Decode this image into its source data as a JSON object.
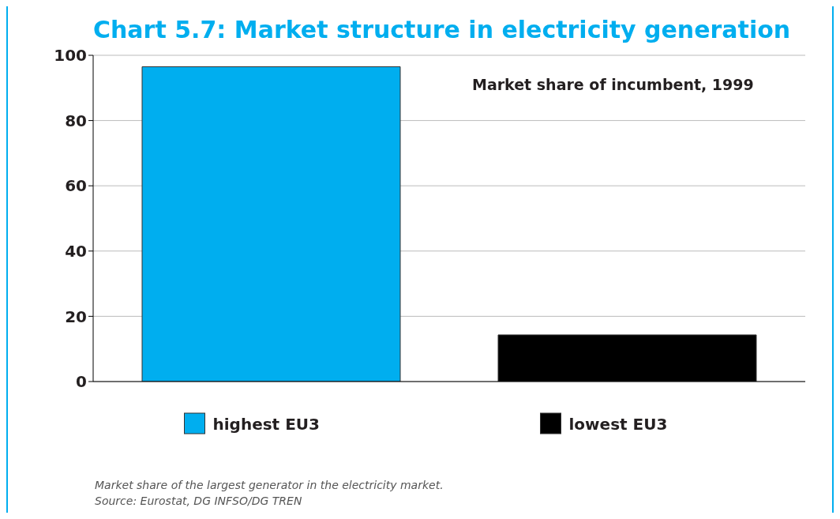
{
  "chart_data": {
    "type": "bar",
    "title": "Chart 5.7: Market structure in electricity generation",
    "subtitle": "Market share of incumbent, 1999",
    "categories": [
      "highest EU3",
      "lowest EU3"
    ],
    "values": [
      96.5,
      14.3
    ],
    "colors": [
      "#00aeef",
      "#000000"
    ],
    "ylim": [
      0,
      100
    ],
    "yticks": [
      0,
      20,
      40,
      60,
      80,
      100
    ],
    "grid": "y",
    "annotations": [
      "Market share of the largest generator in the electricity market.",
      "Source: Eurostat, DG INFSO/DG TREN"
    ]
  }
}
